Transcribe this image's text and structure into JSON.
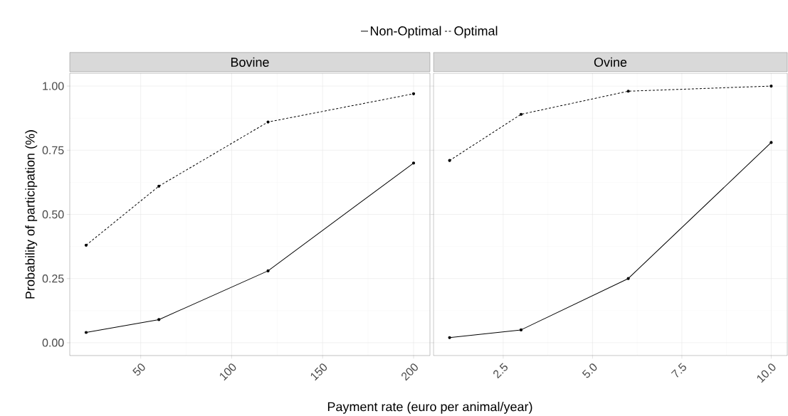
{
  "chart_data": [
    {
      "type": "line",
      "title": "Bovine",
      "xlabel": "Payment rate (euro per animal/year)",
      "ylabel": "Probability of participation (%)",
      "x": [
        20,
        60,
        120,
        200
      ],
      "series": [
        {
          "name": "Non-Optimal",
          "color": "#000000",
          "line_style": "solid",
          "values": [
            0.04,
            0.09,
            0.28,
            0.7
          ]
        },
        {
          "name": "Optimal",
          "color": "#000000",
          "line_style": "dashed",
          "values": [
            0.38,
            0.61,
            0.86,
            0.97
          ]
        }
      ],
      "xlim": [
        11,
        209
      ],
      "ylim": [
        -0.05,
        1.05
      ],
      "xticks": [
        50,
        100,
        150,
        200
      ],
      "yticks": [
        {
          "value": 0,
          "label": "0.00"
        },
        {
          "value": 0.25,
          "label": "0.25"
        },
        {
          "value": 0.5,
          "label": "0.50"
        },
        {
          "value": 0.75,
          "label": "0.75"
        },
        {
          "value": 1,
          "label": "1.00"
        }
      ],
      "grid": true,
      "legend": "top",
      "marker": "circle"
    },
    {
      "type": "line",
      "title": "Ovine",
      "x": [
        1,
        3,
        6,
        10
      ],
      "series": [
        {
          "color": "#000000",
          "line_style": "solid",
          "values": [
            0.02,
            0.05,
            0.25,
            0.78
          ]
        },
        {
          "color": "#000000",
          "line_style": "dashed",
          "values": [
            0.71,
            0.89,
            0.98,
            1.0
          ]
        }
      ],
      "xlim": [
        0.55,
        10.45
      ],
      "ylim": [
        -0.05,
        1.05
      ],
      "xticks": [
        2.5,
        {
          "value": 5,
          "label": "5.0"
        },
        7.5,
        {
          "value": 10,
          "label": "10.0"
        }
      ],
      "yticks": [
        {
          "value": 0,
          "label": null
        },
        {
          "value": 0.25,
          "label": null
        },
        {
          "value": 0.5,
          "label": null
        },
        {
          "value": 0.75,
          "label": null
        },
        {
          "value": 1,
          "label": null
        }
      ],
      "tick_labels": "x",
      "grid": true,
      "marker": "circle"
    }
  ]
}
